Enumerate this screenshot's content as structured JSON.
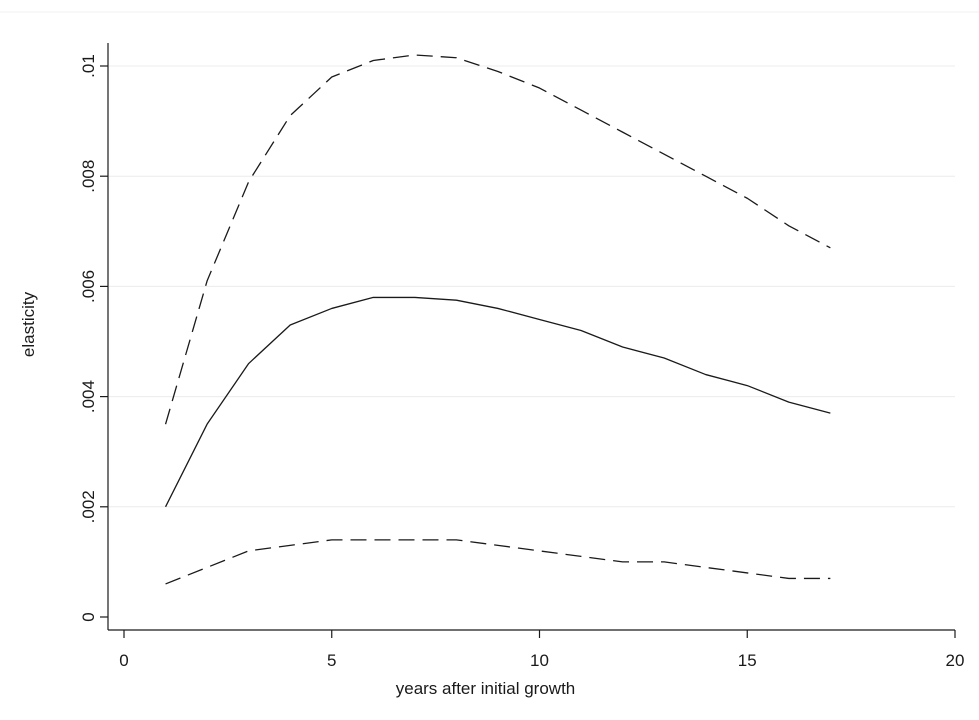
{
  "chart_data": {
    "type": "line",
    "xlabel": "years after initial growth",
    "ylabel": "elasticity",
    "xlim": [
      0,
      20
    ],
    "ylim": [
      0,
      0.01
    ],
    "xticks": [
      0,
      5,
      10,
      15,
      20
    ],
    "xtick_labels": [
      "0",
      "5",
      "10",
      "15",
      "20"
    ],
    "yticks": [
      0,
      0.002,
      0.004,
      0.006,
      0.008,
      0.01
    ],
    "ytick_labels": [
      "0",
      ".002",
      ".004",
      ".006",
      ".008",
      ".01"
    ],
    "grid": "horizontal",
    "legend": "none",
    "x": [
      1,
      2,
      3,
      4,
      5,
      6,
      7,
      8,
      9,
      10,
      11,
      12,
      13,
      14,
      15,
      16,
      17
    ],
    "series": [
      {
        "style": "dashed",
        "color": "#1a1a1a",
        "values": [
          0.0035,
          0.0061,
          0.0079,
          0.0091,
          0.0098,
          0.0101,
          0.0102,
          0.01015,
          0.0099,
          0.0096,
          0.0092,
          0.0088,
          0.0084,
          0.008,
          0.0076,
          0.0071,
          0.0067
        ]
      },
      {
        "style": "solid",
        "color": "#1a1a1a",
        "values": [
          0.002,
          0.0035,
          0.0046,
          0.0053,
          0.0056,
          0.0058,
          0.0058,
          0.00575,
          0.0056,
          0.0054,
          0.0052,
          0.0049,
          0.0047,
          0.0044,
          0.0042,
          0.0039,
          0.0037
        ]
      },
      {
        "style": "dashed",
        "color": "#1a1a1a",
        "values": [
          0.0006,
          0.0009,
          0.0012,
          0.0013,
          0.0014,
          0.0014,
          0.0014,
          0.0014,
          0.0013,
          0.0012,
          0.0011,
          0.001,
          0.001,
          0.0009,
          0.0008,
          0.0007,
          0.0007
        ]
      }
    ]
  }
}
